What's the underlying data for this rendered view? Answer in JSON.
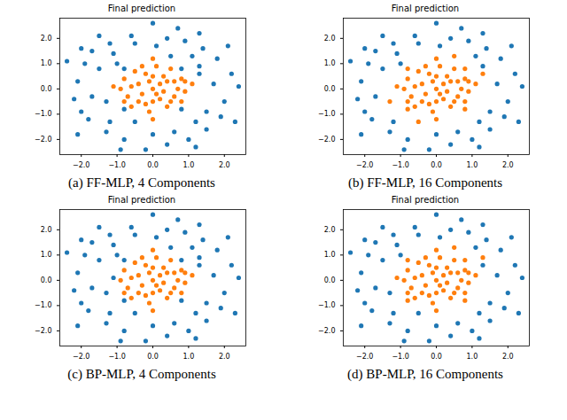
{
  "chart_data": [
    {
      "type": "scatter",
      "title": "Final prediction",
      "caption": "(a) FF-MLP, 4 Components",
      "xlim": [
        -2.6,
        2.6
      ],
      "ylim": [
        -2.6,
        2.8
      ],
      "xticks": [
        -2,
        -1,
        0,
        1,
        2
      ],
      "yticks": [
        -2,
        -1,
        0,
        1,
        2
      ],
      "class_colors": [
        "#1f77b4",
        "#ff7f0e"
      ],
      "x": [
        -2.1,
        -2.2,
        -1.9,
        -1.7,
        -1.2,
        -0.6,
        0.0,
        0.4,
        0.9,
        1.4,
        1.8,
        2.2,
        2.4,
        2.0,
        1.9,
        1.5,
        1.0,
        0.4,
        -0.2,
        -0.8,
        -1.3,
        -1.8,
        -2.0,
        -2.1,
        1.2,
        -1.5,
        1.3,
        -2.4,
        2.3,
        0.7,
        -0.9,
        1.7,
        -1.7,
        0.0,
        0.1,
        -1.5,
        1.5,
        -1.1,
        1.1,
        -1.2,
        1.2,
        2.1,
        -2.0,
        0.6,
        -0.5,
        0.0,
        0.3,
        -0.4,
        0.6,
        -0.2,
        0.8,
        -0.7,
        0.1,
        -0.5,
        0.5,
        -0.8,
        0.9,
        -0.1,
        0.4,
        -0.6,
        0.2,
        -0.3,
        0.7,
        -0.9,
        0.0,
        0.2,
        -0.4,
        0.6,
        -0.2,
        0.3,
        -0.6,
        0.1,
        0.5,
        -0.3,
        0.8,
        -0.8,
        0.4,
        -0.1,
        0.0,
        0.9,
        1.1,
        0.0,
        -1.1,
        0.0,
        0.8,
        -0.8,
        0.8,
        -0.8,
        1.3,
        -1.3,
        0.5,
        -0.5,
        1.3,
        -1.0
      ],
      "y": [
        0.3,
        -0.4,
        1.0,
        1.5,
        1.8,
        2.1,
        2.6,
        2.0,
        1.9,
        1.6,
        1.2,
        0.6,
        0.1,
        -0.5,
        -1.1,
        -1.6,
        -2.0,
        -2.2,
        -2.4,
        -2.0,
        -1.7,
        -1.2,
        -0.9,
        -1.8,
        -2.3,
        2.1,
        2.2,
        1.1,
        -1.3,
        2.4,
        -2.4,
        0.2,
        -0.3,
        -1.8,
        1.7,
        0.8,
        -0.9,
        1.4,
        1.3,
        -1.3,
        -1.3,
        1.7,
        1.6,
        -1.7,
        1.8,
        0.0,
        0.5,
        0.2,
        -0.3,
        -0.6,
        0.4,
        -0.3,
        0.9,
        0.7,
        0.8,
        0.4,
        -0.1,
        -0.9,
        -0.7,
        -0.7,
        0.2,
        -0.2,
        0.0,
        0.0,
        0.5,
        -0.4,
        -0.5,
        0.3,
        0.6,
        -0.1,
        0.1,
        -0.2,
        -0.5,
        0.9,
        -0.5,
        -0.5,
        0.3,
        0.3,
        -0.5,
        0.3,
        0.2,
        1.2,
        0.1,
        -1.2,
        0.8,
        0.8,
        -0.8,
        -0.8,
        0.6,
        -0.5,
        1.3,
        -1.3,
        0.9,
        1.0
      ],
      "classes": [
        0,
        0,
        0,
        0,
        0,
        0,
        0,
        0,
        0,
        0,
        0,
        0,
        0,
        0,
        0,
        0,
        0,
        0,
        0,
        0,
        0,
        0,
        0,
        0,
        0,
        0,
        0,
        0,
        0,
        0,
        0,
        0,
        0,
        0,
        0,
        0,
        0,
        0,
        0,
        0,
        0,
        0,
        0,
        0,
        0,
        1,
        1,
        1,
        1,
        1,
        1,
        1,
        1,
        1,
        1,
        1,
        1,
        1,
        1,
        1,
        1,
        1,
        1,
        1,
        1,
        1,
        1,
        1,
        1,
        1,
        1,
        1,
        1,
        1,
        1,
        1,
        1,
        1,
        1,
        1,
        1,
        1,
        1,
        1,
        0,
        0,
        0,
        0,
        0,
        0,
        0,
        0,
        0,
        0
      ]
    },
    {
      "type": "scatter",
      "title": "Final prediction",
      "caption": "(b) FF-MLP, 16 Components",
      "xlim": [
        -2.6,
        2.6
      ],
      "ylim": [
        -2.6,
        2.8
      ],
      "xticks": [
        -2,
        -1,
        0,
        1,
        2
      ],
      "yticks": [
        -2,
        -1,
        0,
        1,
        2
      ],
      "class_colors": [
        "#1f77b4",
        "#ff7f0e"
      ],
      "x": [
        -2.1,
        -2.2,
        -1.9,
        -1.7,
        -1.2,
        -0.6,
        0.0,
        0.4,
        0.9,
        1.4,
        1.8,
        2.2,
        2.4,
        2.0,
        1.9,
        1.5,
        1.0,
        0.4,
        -0.2,
        -0.8,
        -1.3,
        -1.8,
        -2.0,
        -2.1,
        1.2,
        -1.5,
        1.3,
        -2.4,
        2.3,
        0.7,
        -0.9,
        1.7,
        -1.7,
        0.0,
        0.1,
        -1.5,
        1.5,
        -1.1,
        1.1,
        -1.2,
        1.2,
        2.1,
        -2.0,
        0.6,
        -0.5,
        0.0,
        0.3,
        -0.4,
        0.6,
        -0.2,
        0.8,
        -0.7,
        0.1,
        -0.5,
        0.5,
        -0.8,
        0.9,
        -0.1,
        0.4,
        -0.6,
        0.2,
        -0.3,
        0.7,
        -0.9,
        0.0,
        0.2,
        -0.4,
        0.6,
        -0.2,
        0.3,
        -0.6,
        0.1,
        0.5,
        -0.3,
        0.8,
        -0.8,
        0.4,
        -0.1,
        0.0,
        0.9,
        1.1,
        0.0,
        -1.1,
        0.0,
        0.8,
        -0.8,
        0.8,
        -0.8,
        1.3,
        -1.3,
        0.5,
        -0.5,
        1.3,
        -1.0
      ],
      "y": [
        0.3,
        -0.4,
        1.0,
        1.5,
        1.8,
        2.1,
        2.6,
        2.0,
        1.9,
        1.6,
        1.2,
        0.6,
        0.1,
        -0.5,
        -1.1,
        -1.6,
        -2.0,
        -2.2,
        -2.4,
        -2.0,
        -1.7,
        -1.2,
        -0.9,
        -1.8,
        -2.3,
        2.1,
        2.2,
        1.1,
        -1.3,
        2.4,
        -2.4,
        0.2,
        -0.3,
        -1.8,
        1.7,
        0.8,
        -0.9,
        1.4,
        1.3,
        -1.3,
        -1.3,
        1.7,
        1.6,
        -1.7,
        1.8,
        0.0,
        0.5,
        0.2,
        -0.3,
        -0.6,
        0.4,
        -0.3,
        0.9,
        0.7,
        0.8,
        0.4,
        -0.1,
        -0.9,
        -0.7,
        -0.7,
        0.2,
        -0.2,
        0.0,
        0.0,
        0.5,
        -0.4,
        -0.5,
        0.3,
        0.6,
        -0.1,
        0.1,
        -0.2,
        -0.5,
        0.9,
        -0.5,
        -0.5,
        0.3,
        0.3,
        -0.5,
        0.3,
        0.2,
        1.2,
        0.1,
        -1.2,
        0.8,
        0.8,
        -0.8,
        -0.8,
        0.6,
        -0.5,
        1.3,
        -1.3,
        0.9,
        1.0
      ],
      "classes": [
        0,
        0,
        0,
        0,
        0,
        0,
        0,
        0,
        0,
        0,
        0,
        0,
        0,
        0,
        0,
        0,
        0,
        0,
        0,
        0,
        0,
        0,
        0,
        0,
        0,
        0,
        0,
        0,
        0,
        0,
        0,
        0,
        0,
        0,
        0,
        0,
        0,
        0,
        0,
        0,
        0,
        0,
        0,
        0,
        0,
        1,
        1,
        1,
        1,
        1,
        1,
        1,
        1,
        1,
        1,
        1,
        1,
        1,
        1,
        1,
        1,
        1,
        1,
        1,
        1,
        1,
        1,
        1,
        1,
        1,
        1,
        1,
        1,
        1,
        1,
        1,
        1,
        1,
        1,
        1,
        1,
        1,
        1,
        1,
        1,
        1,
        1,
        1,
        1,
        1,
        1,
        1,
        0,
        0
      ]
    },
    {
      "type": "scatter",
      "title": "Final prediction",
      "caption": "(c) BP-MLP, 4 Components",
      "xlim": [
        -2.6,
        2.6
      ],
      "ylim": [
        -2.6,
        2.8
      ],
      "xticks": [
        -2,
        -1,
        0,
        1,
        2
      ],
      "yticks": [
        -2,
        -1,
        0,
        1,
        2
      ],
      "class_colors": [
        "#1f77b4",
        "#ff7f0e"
      ],
      "x": [
        -2.1,
        -2.2,
        -1.9,
        -1.7,
        -1.2,
        -0.6,
        0.0,
        0.4,
        0.9,
        1.4,
        1.8,
        2.2,
        2.4,
        2.0,
        1.9,
        1.5,
        1.0,
        0.4,
        -0.2,
        -0.8,
        -1.3,
        -1.8,
        -2.0,
        -2.1,
        1.2,
        -1.5,
        1.3,
        -2.4,
        2.3,
        0.7,
        -0.9,
        1.7,
        -1.7,
        0.0,
        0.1,
        -1.5,
        1.5,
        -1.1,
        1.1,
        -1.2,
        1.2,
        2.1,
        -2.0,
        0.6,
        -0.5,
        0.0,
        0.3,
        -0.4,
        0.6,
        -0.2,
        0.8,
        -0.7,
        0.1,
        -0.5,
        0.5,
        -0.8,
        0.9,
        -0.1,
        0.4,
        -0.6,
        0.2,
        -0.3,
        0.7,
        -0.9,
        0.0,
        0.2,
        -0.4,
        0.6,
        -0.2,
        0.3,
        -0.6,
        0.1,
        0.5,
        -0.3,
        0.8,
        -0.8,
        0.4,
        -0.1,
        0.0,
        0.9,
        1.1,
        0.0,
        -1.1,
        0.0,
        0.8,
        -0.8,
        0.8,
        -0.8,
        1.3,
        -1.3,
        0.5,
        -0.5,
        1.3,
        -1.0
      ],
      "y": [
        0.3,
        -0.4,
        1.0,
        1.5,
        1.8,
        2.1,
        2.6,
        2.0,
        1.9,
        1.6,
        1.2,
        0.6,
        0.1,
        -0.5,
        -1.1,
        -1.6,
        -2.0,
        -2.2,
        -2.4,
        -2.0,
        -1.7,
        -1.2,
        -0.9,
        -1.8,
        -2.3,
        2.1,
        2.2,
        1.1,
        -1.3,
        2.4,
        -2.4,
        0.2,
        -0.3,
        -1.8,
        1.7,
        0.8,
        -0.9,
        1.4,
        1.3,
        -1.3,
        -1.3,
        1.7,
        1.6,
        -1.7,
        1.8,
        0.0,
        0.5,
        0.2,
        -0.3,
        -0.6,
        0.4,
        -0.3,
        0.9,
        0.7,
        0.8,
        0.4,
        -0.1,
        -0.9,
        -0.7,
        -0.7,
        0.2,
        -0.2,
        0.0,
        0.0,
        0.5,
        -0.4,
        -0.5,
        0.3,
        0.6,
        -0.1,
        0.1,
        -0.2,
        -0.5,
        0.9,
        -0.5,
        -0.5,
        0.3,
        0.3,
        -0.5,
        0.3,
        0.2,
        1.2,
        0.1,
        -1.2,
        0.8,
        0.8,
        -0.8,
        -0.8,
        0.6,
        -0.5,
        1.3,
        -1.3,
        0.9,
        1.0
      ],
      "classes": [
        0,
        0,
        0,
        0,
        0,
        0,
        0,
        0,
        0,
        0,
        0,
        0,
        0,
        0,
        0,
        0,
        0,
        0,
        0,
        0,
        0,
        0,
        0,
        0,
        0,
        0,
        0,
        0,
        0,
        0,
        0,
        0,
        0,
        0,
        0,
        0,
        0,
        0,
        0,
        0,
        0,
        0,
        0,
        0,
        0,
        1,
        1,
        1,
        1,
        1,
        1,
        1,
        1,
        1,
        1,
        1,
        1,
        1,
        1,
        1,
        1,
        1,
        1,
        1,
        1,
        1,
        1,
        1,
        1,
        1,
        1,
        1,
        1,
        1,
        1,
        1,
        1,
        1,
        1,
        1,
        1,
        1,
        0,
        1,
        0,
        0,
        0,
        0,
        0,
        0,
        0,
        0,
        0,
        0
      ]
    },
    {
      "type": "scatter",
      "title": "Final prediction",
      "caption": "(d) BP-MLP, 16 Components",
      "xlim": [
        -2.6,
        2.6
      ],
      "ylim": [
        -2.6,
        2.8
      ],
      "xticks": [
        -2,
        -1,
        0,
        1,
        2
      ],
      "yticks": [
        -2,
        -1,
        0,
        1,
        2
      ],
      "class_colors": [
        "#1f77b4",
        "#ff7f0e"
      ],
      "x": [
        -2.1,
        -2.2,
        -1.9,
        -1.7,
        -1.2,
        -0.6,
        0.0,
        0.4,
        0.9,
        1.4,
        1.8,
        2.2,
        2.4,
        2.0,
        1.9,
        1.5,
        1.0,
        0.4,
        -0.2,
        -0.8,
        -1.3,
        -1.8,
        -2.0,
        -2.1,
        1.2,
        -1.5,
        1.3,
        -2.4,
        2.3,
        0.7,
        -0.9,
        1.7,
        -1.7,
        0.0,
        0.1,
        -1.5,
        1.5,
        -1.1,
        1.1,
        -1.2,
        1.2,
        2.1,
        -2.0,
        0.6,
        -0.5,
        0.0,
        0.3,
        -0.4,
        0.6,
        -0.2,
        0.8,
        -0.7,
        0.1,
        -0.5,
        0.5,
        -0.8,
        0.9,
        -0.1,
        0.4,
        -0.6,
        0.2,
        -0.3,
        0.7,
        -0.9,
        0.0,
        0.2,
        -0.4,
        0.6,
        -0.2,
        0.3,
        -0.6,
        0.1,
        0.5,
        -0.3,
        0.8,
        -0.8,
        0.4,
        -0.1,
        0.0,
        0.9,
        1.1,
        0.0,
        -1.1,
        0.0,
        0.8,
        -0.8,
        0.8,
        -0.8,
        1.3,
        -1.3,
        0.5,
        -0.5,
        1.3,
        -1.0
      ],
      "y": [
        0.3,
        -0.4,
        1.0,
        1.5,
        1.8,
        2.1,
        2.6,
        2.0,
        1.9,
        1.6,
        1.2,
        0.6,
        0.1,
        -0.5,
        -1.1,
        -1.6,
        -2.0,
        -2.2,
        -2.4,
        -2.0,
        -1.7,
        -1.2,
        -0.9,
        -1.8,
        -2.3,
        2.1,
        2.2,
        1.1,
        -1.3,
        2.4,
        -2.4,
        0.2,
        -0.3,
        -1.8,
        1.7,
        0.8,
        -0.9,
        1.4,
        1.3,
        -1.3,
        -1.3,
        1.7,
        1.6,
        -1.7,
        1.8,
        0.0,
        0.5,
        0.2,
        -0.3,
        -0.6,
        0.4,
        -0.3,
        0.9,
        0.7,
        0.8,
        0.4,
        -0.1,
        -0.9,
        -0.7,
        -0.7,
        0.2,
        -0.2,
        0.0,
        0.0,
        0.5,
        -0.4,
        -0.5,
        0.3,
        0.6,
        -0.1,
        0.1,
        -0.2,
        -0.5,
        0.9,
        -0.5,
        -0.5,
        0.3,
        0.3,
        -0.5,
        0.3,
        0.2,
        1.2,
        0.1,
        -1.2,
        0.8,
        0.8,
        -0.8,
        -0.8,
        0.6,
        -0.5,
        1.3,
        -1.3,
        0.9,
        1.0
      ],
      "classes": [
        0,
        0,
        0,
        0,
        0,
        0,
        0,
        0,
        0,
        0,
        0,
        0,
        0,
        0,
        0,
        0,
        0,
        0,
        0,
        0,
        0,
        0,
        0,
        0,
        0,
        0,
        0,
        0,
        0,
        0,
        0,
        0,
        0,
        0,
        0,
        0,
        0,
        0,
        0,
        0,
        0,
        0,
        0,
        0,
        0,
        1,
        1,
        1,
        1,
        1,
        1,
        1,
        1,
        1,
        1,
        1,
        1,
        1,
        1,
        1,
        1,
        1,
        1,
        1,
        1,
        1,
        1,
        1,
        1,
        1,
        1,
        1,
        1,
        1,
        1,
        1,
        1,
        1,
        1,
        1,
        1,
        1,
        1,
        1,
        1,
        1,
        1,
        1,
        0,
        0,
        1,
        0,
        1,
        0
      ]
    }
  ]
}
